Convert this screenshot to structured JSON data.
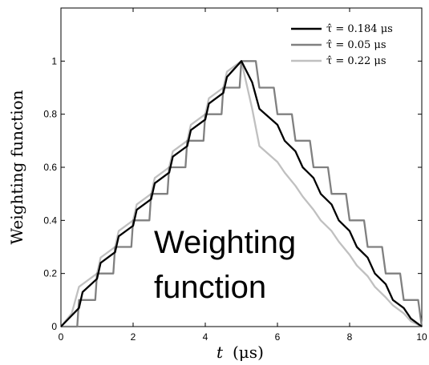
{
  "chart_data": {
    "type": "line",
    "xlabel_var": "t",
    "xlabel_unit": "(μs)",
    "ylabel": "Weighting function",
    "xlim": [
      0,
      10
    ],
    "ylim": [
      0,
      1.2
    ],
    "xticks": [
      "0",
      "2",
      "4",
      "6",
      "8",
      "10"
    ],
    "yticks": [
      "0",
      "0.2",
      "0.4",
      "0.6",
      "0.8",
      "1"
    ],
    "legend_position": "top-right",
    "overlay_text": [
      "Weighting",
      "function"
    ],
    "series": [
      {
        "name": "τ̂ = 0.184 μs",
        "color": "#000000",
        "tau": 0.184,
        "points": [
          [
            0,
            0
          ],
          [
            0.5,
            0.07
          ],
          [
            0.6,
            0.13
          ],
          [
            1.0,
            0.18
          ],
          [
            1.1,
            0.24
          ],
          [
            1.5,
            0.28
          ],
          [
            1.6,
            0.34
          ],
          [
            2.0,
            0.38
          ],
          [
            2.1,
            0.44
          ],
          [
            2.5,
            0.48
          ],
          [
            2.6,
            0.54
          ],
          [
            3.0,
            0.58
          ],
          [
            3.1,
            0.64
          ],
          [
            3.5,
            0.68
          ],
          [
            3.6,
            0.74
          ],
          [
            4.0,
            0.78
          ],
          [
            4.1,
            0.84
          ],
          [
            4.5,
            0.88
          ],
          [
            4.6,
            0.94
          ],
          [
            5.0,
            1.0
          ],
          [
            5.3,
            0.92
          ],
          [
            5.5,
            0.82
          ],
          [
            6.0,
            0.76
          ],
          [
            6.2,
            0.7
          ],
          [
            6.5,
            0.66
          ],
          [
            6.7,
            0.6
          ],
          [
            7.0,
            0.56
          ],
          [
            7.2,
            0.5
          ],
          [
            7.5,
            0.46
          ],
          [
            7.7,
            0.4
          ],
          [
            8.0,
            0.36
          ],
          [
            8.2,
            0.3
          ],
          [
            8.5,
            0.26
          ],
          [
            8.7,
            0.2
          ],
          [
            9.0,
            0.16
          ],
          [
            9.2,
            0.1
          ],
          [
            9.5,
            0.07
          ],
          [
            9.7,
            0.03
          ],
          [
            10,
            0
          ]
        ]
      },
      {
        "name": "τ̂ = 0.05 μs",
        "color": "#808080",
        "tau": 0.05,
        "points": [
          [
            0,
            0
          ],
          [
            0.45,
            0.0
          ],
          [
            0.5,
            0.1
          ],
          [
            0.95,
            0.1
          ],
          [
            1.0,
            0.2
          ],
          [
            1.45,
            0.2
          ],
          [
            1.5,
            0.3
          ],
          [
            1.95,
            0.3
          ],
          [
            2.0,
            0.4
          ],
          [
            2.45,
            0.4
          ],
          [
            2.5,
            0.5
          ],
          [
            2.95,
            0.5
          ],
          [
            3.0,
            0.6
          ],
          [
            3.45,
            0.6
          ],
          [
            3.5,
            0.7
          ],
          [
            3.95,
            0.7
          ],
          [
            4.0,
            0.8
          ],
          [
            4.45,
            0.8
          ],
          [
            4.5,
            0.9
          ],
          [
            4.95,
            0.9
          ],
          [
            5.0,
            1.0
          ],
          [
            5.4,
            1.0
          ],
          [
            5.5,
            0.9
          ],
          [
            5.9,
            0.9
          ],
          [
            6.0,
            0.8
          ],
          [
            6.4,
            0.8
          ],
          [
            6.5,
            0.7
          ],
          [
            6.9,
            0.7
          ],
          [
            7.0,
            0.6
          ],
          [
            7.4,
            0.6
          ],
          [
            7.5,
            0.5
          ],
          [
            7.9,
            0.5
          ],
          [
            8.0,
            0.4
          ],
          [
            8.4,
            0.4
          ],
          [
            8.5,
            0.3
          ],
          [
            8.9,
            0.3
          ],
          [
            9.0,
            0.2
          ],
          [
            9.4,
            0.2
          ],
          [
            9.5,
            0.1
          ],
          [
            9.9,
            0.1
          ],
          [
            10,
            0
          ]
        ]
      },
      {
        "name": "τ̂ = 0.22 μs",
        "color": "#c0c0c0",
        "tau": 0.22,
        "points": [
          [
            0,
            0
          ],
          [
            0.3,
            0.05
          ],
          [
            0.5,
            0.15
          ],
          [
            1.0,
            0.2
          ],
          [
            1.1,
            0.26
          ],
          [
            1.5,
            0.3
          ],
          [
            1.6,
            0.36
          ],
          [
            2.0,
            0.4
          ],
          [
            2.1,
            0.46
          ],
          [
            2.5,
            0.5
          ],
          [
            2.6,
            0.56
          ],
          [
            3.0,
            0.6
          ],
          [
            3.1,
            0.66
          ],
          [
            3.5,
            0.7
          ],
          [
            3.6,
            0.76
          ],
          [
            4.0,
            0.8
          ],
          [
            4.1,
            0.86
          ],
          [
            4.5,
            0.9
          ],
          [
            4.6,
            0.96
          ],
          [
            5.0,
            1.0
          ],
          [
            5.3,
            0.82
          ],
          [
            5.5,
            0.68
          ],
          [
            6.0,
            0.62
          ],
          [
            6.2,
            0.58
          ],
          [
            6.5,
            0.53
          ],
          [
            6.7,
            0.49
          ],
          [
            7.0,
            0.44
          ],
          [
            7.2,
            0.4
          ],
          [
            7.5,
            0.36
          ],
          [
            7.7,
            0.32
          ],
          [
            8.0,
            0.27
          ],
          [
            8.2,
            0.23
          ],
          [
            8.5,
            0.19
          ],
          [
            8.7,
            0.15
          ],
          [
            9.0,
            0.11
          ],
          [
            9.2,
            0.08
          ],
          [
            9.5,
            0.05
          ],
          [
            9.7,
            0.02
          ],
          [
            10,
            0
          ]
        ]
      }
    ]
  }
}
